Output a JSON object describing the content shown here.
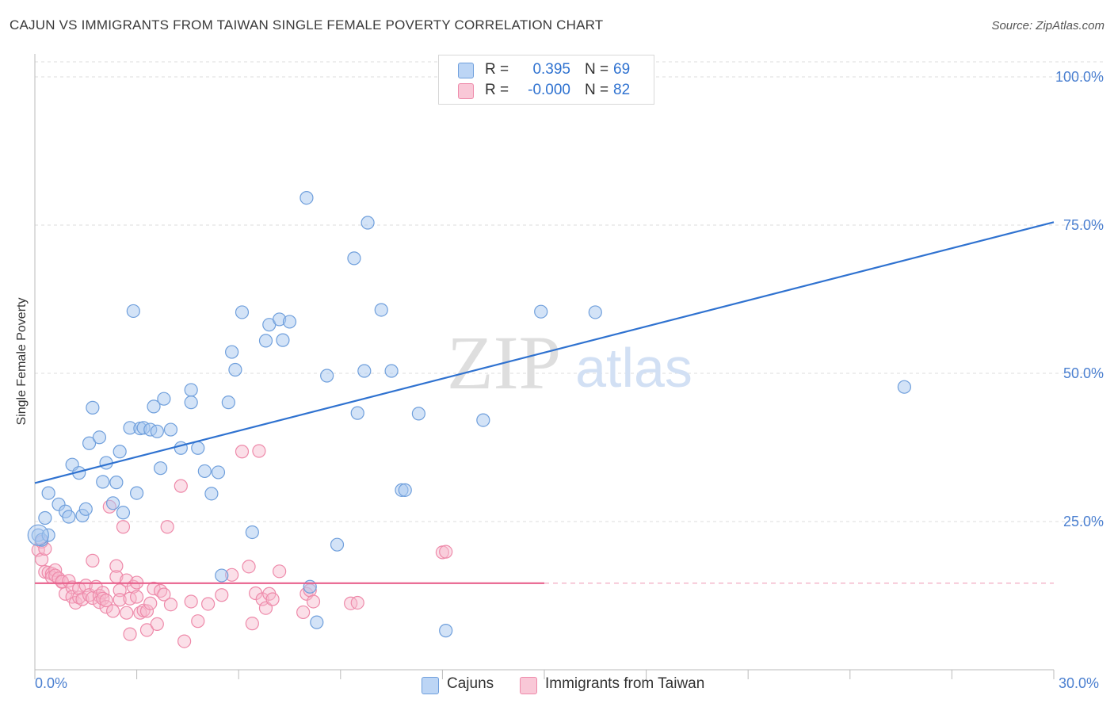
{
  "header": {
    "title": "CAJUN VS IMMIGRANTS FROM TAIWAN SINGLE FEMALE POVERTY CORRELATION CHART",
    "source": "Source: ZipAtlas.com"
  },
  "legend": {
    "row1": {
      "r_label": "R =",
      "r_value": "0.395",
      "n_label": "N =",
      "n_value": "69"
    },
    "row2": {
      "r_label": "R =",
      "r_value": "-0.000",
      "n_label": "N =",
      "n_value": "82"
    }
  },
  "bottom_legend": {
    "series1": "Cajuns",
    "series2": "Immigrants from Taiwan"
  },
  "watermark": {
    "part1": "ZIP",
    "part2": "atlas"
  },
  "colors": {
    "blue_fill": "#a8c8f0",
    "blue_stroke": "#6f9fdc",
    "blue_line": "#2f72d0",
    "pink_fill": "#f7b8cc",
    "pink_stroke": "#ee8aaa",
    "pink_line": "#e8608c",
    "tick_text": "#4a7fd0"
  },
  "chart_data": {
    "type": "scatter",
    "title": "CAJUN VS IMMIGRANTS FROM TAIWAN SINGLE FEMALE POVERTY CORRELATION CHART",
    "xlabel": "",
    "ylabel": "Single Female Poverty",
    "xlim": [
      0,
      30
    ],
    "ylim": [
      0,
      100
    ],
    "x_tick_labels": [
      "0.0%",
      "30.0%"
    ],
    "y_ticks": [
      25,
      50,
      75,
      100
    ],
    "y_tick_labels": [
      "25.0%",
      "50.0%",
      "75.0%",
      "100.0%"
    ],
    "grid": "horizontal dashed",
    "legend_placement": "top-center",
    "series": [
      {
        "name": "Cajuns",
        "r": 0.395,
        "n": 69,
        "trend": {
          "x0": 0,
          "y0": 31.5,
          "x1": 30,
          "y1": 75.5,
          "style": "solid"
        },
        "points": [
          [
            0.1,
            22.7
          ],
          [
            0.2,
            21.9
          ],
          [
            0.3,
            25.6
          ],
          [
            0.4,
            29.8
          ],
          [
            0.4,
            22.7
          ],
          [
            0.7,
            27.9
          ],
          [
            0.9,
            26.7
          ],
          [
            1.0,
            25.8
          ],
          [
            1.1,
            34.6
          ],
          [
            1.3,
            33.2
          ],
          [
            1.4,
            26.0
          ],
          [
            1.5,
            27.1
          ],
          [
            1.6,
            38.2
          ],
          [
            1.7,
            44.2
          ],
          [
            1.9,
            39.2
          ],
          [
            2.0,
            31.7
          ],
          [
            2.1,
            34.9
          ],
          [
            2.3,
            28.1
          ],
          [
            2.4,
            31.6
          ],
          [
            2.5,
            36.8
          ],
          [
            2.6,
            26.5
          ],
          [
            2.8,
            40.8
          ],
          [
            2.9,
            60.5
          ],
          [
            3.0,
            29.8
          ],
          [
            3.1,
            40.7
          ],
          [
            3.2,
            40.8
          ],
          [
            3.4,
            40.5
          ],
          [
            3.5,
            44.4
          ],
          [
            3.6,
            40.2
          ],
          [
            3.7,
            34.0
          ],
          [
            3.8,
            45.7
          ],
          [
            4.0,
            40.5
          ],
          [
            4.3,
            37.4
          ],
          [
            4.6,
            47.2
          ],
          [
            4.6,
            45.1
          ],
          [
            4.8,
            37.4
          ],
          [
            5.0,
            33.5
          ],
          [
            5.2,
            29.7
          ],
          [
            5.4,
            33.3
          ],
          [
            5.5,
            15.9
          ],
          [
            5.7,
            45.1
          ],
          [
            5.8,
            53.6
          ],
          [
            5.9,
            50.6
          ],
          [
            6.1,
            60.3
          ],
          [
            6.4,
            23.2
          ],
          [
            6.8,
            55.5
          ],
          [
            6.9,
            58.2
          ],
          [
            7.2,
            59.1
          ],
          [
            7.3,
            55.6
          ],
          [
            7.5,
            58.7
          ],
          [
            8.0,
            79.6
          ],
          [
            8.1,
            14.0
          ],
          [
            8.3,
            8.0
          ],
          [
            8.6,
            49.6
          ],
          [
            8.9,
            21.1
          ],
          [
            9.4,
            69.4
          ],
          [
            9.5,
            43.3
          ],
          [
            9.7,
            50.4
          ],
          [
            9.8,
            75.4
          ],
          [
            10.2,
            60.7
          ],
          [
            10.5,
            50.4
          ],
          [
            10.8,
            30.3
          ],
          [
            10.9,
            30.3
          ],
          [
            11.3,
            43.2
          ],
          [
            12.1,
            6.6
          ],
          [
            13.2,
            42.1
          ],
          [
            14.9,
            60.4
          ],
          [
            16.5,
            60.3
          ],
          [
            25.6,
            47.7
          ]
        ]
      },
      {
        "name": "Immigrants from Taiwan",
        "r": -0.0,
        "n": 82,
        "trend": {
          "x0": 0,
          "y0": 14.6,
          "x1": 15,
          "y1": 14.6,
          "style": "solid",
          "dashed_to": 30
        },
        "points": [
          [
            0.1,
            20.2
          ],
          [
            0.2,
            18.6
          ],
          [
            0.2,
            21.6
          ],
          [
            0.3,
            20.4
          ],
          [
            0.3,
            16.5
          ],
          [
            0.4,
            16.4
          ],
          [
            0.5,
            16.2
          ],
          [
            0.5,
            15.6
          ],
          [
            0.6,
            16.8
          ],
          [
            0.6,
            15.9
          ],
          [
            0.7,
            15.4
          ],
          [
            0.8,
            14.8
          ],
          [
            0.8,
            14.9
          ],
          [
            0.9,
            12.8
          ],
          [
            1.0,
            15.0
          ],
          [
            1.1,
            13.9
          ],
          [
            1.1,
            12.3
          ],
          [
            1.2,
            11.3
          ],
          [
            1.3,
            12.2
          ],
          [
            1.3,
            13.7
          ],
          [
            1.4,
            11.9
          ],
          [
            1.5,
            14.2
          ],
          [
            1.6,
            12.6
          ],
          [
            1.7,
            12.1
          ],
          [
            1.7,
            18.4
          ],
          [
            1.8,
            14.0
          ],
          [
            1.9,
            12.5
          ],
          [
            1.9,
            11.4
          ],
          [
            2.0,
            13.0
          ],
          [
            2.0,
            12.0
          ],
          [
            2.1,
            10.6
          ],
          [
            2.1,
            11.7
          ],
          [
            2.2,
            27.5
          ],
          [
            2.3,
            9.9
          ],
          [
            2.4,
            15.7
          ],
          [
            2.4,
            17.5
          ],
          [
            2.5,
            13.4
          ],
          [
            2.5,
            11.8
          ],
          [
            2.6,
            24.1
          ],
          [
            2.7,
            15.1
          ],
          [
            2.7,
            9.6
          ],
          [
            2.8,
            12.0
          ],
          [
            2.8,
            6.0
          ],
          [
            2.9,
            14.0
          ],
          [
            3.0,
            14.7
          ],
          [
            3.0,
            12.3
          ],
          [
            3.1,
            9.6
          ],
          [
            3.2,
            10.0
          ],
          [
            3.3,
            6.7
          ],
          [
            3.3,
            9.9
          ],
          [
            3.4,
            11.2
          ],
          [
            3.5,
            13.7
          ],
          [
            3.6,
            7.7
          ],
          [
            3.7,
            13.3
          ],
          [
            3.8,
            12.7
          ],
          [
            3.9,
            24.1
          ],
          [
            4.0,
            11.0
          ],
          [
            4.3,
            31.0
          ],
          [
            4.4,
            4.8
          ],
          [
            4.6,
            11.5
          ],
          [
            4.8,
            8.2
          ],
          [
            5.1,
            11.1
          ],
          [
            5.5,
            12.6
          ],
          [
            5.8,
            16.0
          ],
          [
            6.1,
            36.8
          ],
          [
            6.3,
            17.4
          ],
          [
            6.4,
            7.8
          ],
          [
            6.5,
            12.9
          ],
          [
            6.6,
            36.9
          ],
          [
            6.7,
            11.9
          ],
          [
            6.8,
            10.4
          ],
          [
            6.9,
            12.8
          ],
          [
            7.0,
            11.9
          ],
          [
            7.2,
            16.6
          ],
          [
            7.9,
            9.7
          ],
          [
            8.0,
            12.8
          ],
          [
            8.1,
            13.4
          ],
          [
            8.2,
            11.5
          ],
          [
            9.3,
            11.2
          ],
          [
            9.5,
            11.3
          ],
          [
            12.0,
            19.8
          ],
          [
            12.1,
            19.9
          ]
        ]
      }
    ]
  }
}
